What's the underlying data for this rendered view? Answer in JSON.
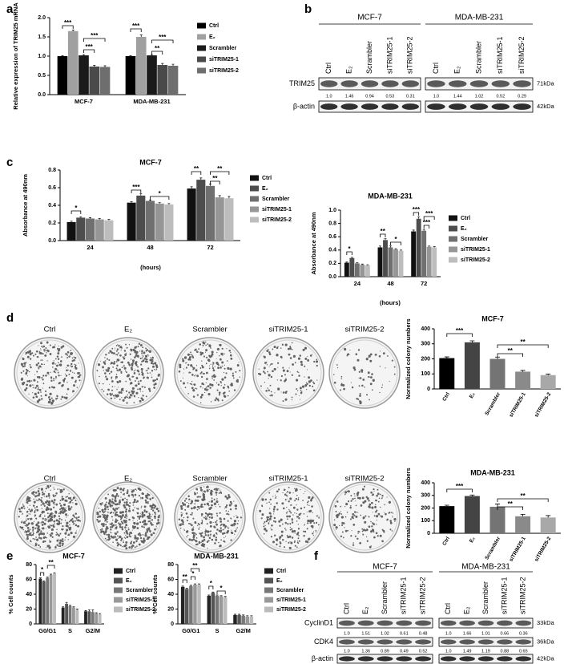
{
  "panel_labels": [
    "a",
    "b",
    "c",
    "d",
    "e",
    "f"
  ],
  "chart_data": [
    {
      "type": "bar",
      "y_label": "Relative expression of TRIM25 mRNA",
      "categories": [
        "MCF-7",
        "MDA-MB-231"
      ],
      "ylim": [
        0,
        2
      ],
      "yticks": [
        {
          "value": 0,
          "label": "0.0"
        },
        0.5,
        {
          "value": 1,
          "label": "1.0"
        },
        1.5,
        {
          "value": 2,
          "label": "2.0"
        }
      ],
      "series": [
        {
          "name": "Ctrl",
          "color": "#000000",
          "values": [
            1.0,
            1.0
          ],
          "errors": [
            0.01,
            0.01
          ]
        },
        {
          "name": "E₂",
          "color": "#a0a0a0",
          "values": [
            1.65,
            1.5
          ],
          "errors": [
            0.03,
            0.05
          ]
        },
        {
          "name": "Scrambler",
          "color": "#1a1a1a",
          "values": [
            1.02,
            1.02
          ],
          "errors": [
            0.02,
            0.02
          ]
        },
        {
          "name": "siTRIM25-1",
          "color": "#4a4a4a",
          "values": [
            0.73,
            0.77
          ],
          "errors": [
            0.03,
            0.04
          ]
        },
        {
          "name": "siTRIM25-2",
          "color": "#6e6e6e",
          "values": [
            0.72,
            0.75
          ],
          "errors": [
            0.03,
            0.04
          ]
        }
      ],
      "annotations": [
        "***",
        "***",
        "***",
        "***",
        "**",
        "***"
      ]
    },
    {
      "type": "bar",
      "title": "MCF-7",
      "y_label": "Absorbance at 490nm",
      "x_label": "(hours)",
      "categories": [
        "24",
        "48",
        "72"
      ],
      "ylim": [
        0,
        0.8
      ],
      "yticks": [
        {
          "value": 0,
          "label": "0.0"
        },
        0.2,
        0.4,
        0.6,
        0.8
      ],
      "series": [
        {
          "name": "Ctrl",
          "color": "#111111",
          "values": [
            0.21,
            0.43,
            0.59
          ],
          "errors": [
            0.01,
            0.01,
            0.02
          ]
        },
        {
          "name": "E₂",
          "color": "#4d4d4d",
          "values": [
            0.26,
            0.51,
            0.69
          ],
          "errors": [
            0.01,
            0.02,
            0.02
          ]
        },
        {
          "name": "Scrambler",
          "color": "#707070",
          "values": [
            0.25,
            0.45,
            0.62
          ],
          "errors": [
            0.01,
            0.01,
            0.02
          ]
        },
        {
          "name": "siTRIM25-1",
          "color": "#969696",
          "values": [
            0.24,
            0.42,
            0.49
          ],
          "errors": [
            0.01,
            0.01,
            0.02
          ]
        },
        {
          "name": "siTRIM25-2",
          "color": "#bdbdbd",
          "values": [
            0.23,
            0.41,
            0.48
          ],
          "errors": [
            0.01,
            0.01,
            0.02
          ]
        }
      ],
      "annotations": [
        "*",
        "***",
        "*",
        "**",
        "**",
        "**"
      ]
    },
    {
      "type": "bar",
      "title": "MDA-MB-231",
      "y_label": "Absorbance at 490nm",
      "x_label": "(hours)",
      "categories": [
        "24",
        "48",
        "72"
      ],
      "ylim": [
        0,
        1
      ],
      "yticks": [
        {
          "value": 0,
          "label": "0.0"
        },
        0.2,
        0.4,
        0.6,
        0.8,
        {
          "value": 1,
          "label": "1.0"
        }
      ],
      "series": [
        {
          "name": "Ctrl",
          "color": "#111111",
          "values": [
            0.21,
            0.44,
            0.68
          ],
          "errors": [
            0.01,
            0.02,
            0.02
          ]
        },
        {
          "name": "E₂",
          "color": "#4d4d4d",
          "values": [
            0.28,
            0.55,
            0.87
          ],
          "errors": [
            0.01,
            0.02,
            0.03
          ]
        },
        {
          "name": "Scrambler",
          "color": "#707070",
          "values": [
            0.2,
            0.44,
            0.69
          ],
          "errors": [
            0.01,
            0.02,
            0.02
          ]
        },
        {
          "name": "siTRIM25-1",
          "color": "#969696",
          "values": [
            0.18,
            0.41,
            0.45
          ],
          "errors": [
            0.01,
            0.01,
            0.01
          ]
        },
        {
          "name": "siTRIM25-2",
          "color": "#bdbdbd",
          "values": [
            0.17,
            0.39,
            0.44
          ],
          "errors": [
            0.01,
            0.01,
            0.01
          ]
        }
      ],
      "annotations": [
        "*",
        "**",
        "*",
        "***",
        "***",
        "***"
      ]
    },
    {
      "type": "bar",
      "title": "MCF-7",
      "y_label": "Normalized colony numbers",
      "categories": [
        "Ctrl",
        "E₂",
        "Scrambler",
        "siTRIM25-1",
        "siTRIM25-2"
      ],
      "values": [
        205,
        310,
        200,
        115,
        92
      ],
      "errors": [
        8,
        10,
        12,
        8,
        7
      ],
      "colors": [
        "#000000",
        "#444444",
        "#747474",
        "#8a8a8a",
        "#a8a8a8"
      ],
      "ylim": [
        0,
        400
      ],
      "yticks": [
        0,
        100,
        200,
        300,
        400
      ],
      "annotations": [
        "***",
        "**",
        "**"
      ]
    },
    {
      "type": "bar",
      "title": "MDA-MB-231",
      "y_label": "Normalized colony numbers",
      "categories": [
        "Ctrl",
        "E₂",
        "Scrambler",
        "siTRIM25-1",
        "siTRIM25-2"
      ],
      "values": [
        215,
        295,
        210,
        135,
        125
      ],
      "errors": [
        7,
        8,
        22,
        15,
        15
      ],
      "colors": [
        "#000000",
        "#444444",
        "#747474",
        "#8a8a8a",
        "#a8a8a8"
      ],
      "ylim": [
        0,
        400
      ],
      "yticks": [
        0,
        100,
        200,
        300,
        400
      ],
      "annotations": [
        "***",
        "**",
        "**"
      ]
    },
    {
      "type": "bar",
      "title": "MCF-7",
      "y_label": "% Cell counts",
      "categories": [
        "G0/G1",
        "S",
        "G2/M"
      ],
      "ylim": [
        0,
        80
      ],
      "yticks": [
        0,
        20,
        40,
        60,
        80
      ],
      "series": [
        {
          "name": "Ctrl",
          "color": "#222222",
          "values": [
            61,
            22,
            17
          ],
          "errors": [
            1,
            1,
            1
          ]
        },
        {
          "name": "E₂",
          "color": "#555555",
          "values": [
            57,
            27,
            17
          ],
          "errors": [
            1,
            2,
            2
          ]
        },
        {
          "name": "Scrambler",
          "color": "#777777",
          "values": [
            62,
            24,
            16
          ],
          "errors": [
            1,
            1,
            3
          ]
        },
        {
          "name": "siTRIM25-1",
          "color": "#999999",
          "values": [
            66,
            22,
            14
          ],
          "errors": [
            1,
            1,
            1
          ]
        },
        {
          "name": "siTRIM25-2",
          "color": "#bbbbbb",
          "values": [
            68,
            19,
            13
          ],
          "errors": [
            1,
            1,
            1
          ]
        }
      ],
      "annotations": [
        "*",
        "**"
      ]
    },
    {
      "type": "bar",
      "title": "MDA-MB-231",
      "y_label": "% Cell counts",
      "categories": [
        "G0/G1",
        "S",
        "G2/M"
      ],
      "ylim": [
        0,
        80
      ],
      "yticks": [
        0,
        20,
        40,
        60,
        80
      ],
      "series": [
        {
          "name": "Ctrl",
          "color": "#222222",
          "values": [
            50,
            38,
            12
          ],
          "errors": [
            1,
            1,
            1
          ]
        },
        {
          "name": "E₂",
          "color": "#555555",
          "values": [
            47,
            42,
            12
          ],
          "errors": [
            1,
            1,
            1
          ]
        },
        {
          "name": "Scrambler",
          "color": "#777777",
          "values": [
            51,
            38,
            11
          ],
          "errors": [
            1,
            1,
            1
          ]
        },
        {
          "name": "siTRIM25-1",
          "color": "#999999",
          "values": [
            53,
            37,
            10
          ],
          "errors": [
            1,
            1,
            1
          ]
        },
        {
          "name": "siTRIM25-2",
          "color": "#bbbbbb",
          "values": [
            53,
            36,
            10
          ],
          "errors": [
            1,
            1,
            1
          ]
        }
      ],
      "annotations": [
        "**",
        "**",
        "*",
        "*",
        "*"
      ]
    }
  ],
  "colony_labels": [
    [
      "Ctrl",
      "E₂",
      "Scrambler",
      "siTRIM25-1",
      "siTRIM25-2"
    ],
    [
      "Ctrl",
      "E₂",
      "Scrambler",
      "siTRIM25-1",
      "siTRIM25-2"
    ]
  ],
  "blots": [
    {
      "groups": [
        "MCF-7",
        "MDA-MB-231"
      ],
      "lanes": [
        "Ctrl",
        "E₂",
        "Scrambler",
        "siTRIM25-1",
        "siTRIM25-2"
      ],
      "rows": [
        {
          "name": "TRIM25",
          "kda": "71kDa",
          "quantification": [
            [
              "1.0",
              "1.46",
              "0.94",
              "0.53",
              "0.31"
            ],
            [
              "1.0",
              "1.44",
              "1.02",
              "0.52",
              "0.29"
            ]
          ]
        },
        {
          "name": "β-actin",
          "kda": "42kDa"
        }
      ]
    },
    {
      "groups": [
        "MCF-7",
        "MDA-MB-231"
      ],
      "lanes": [
        "Ctrl",
        "E₂",
        "Scrambler",
        "siTRIM25-1",
        "siTRIM25-2"
      ],
      "rows": [
        {
          "name": "CyclinD1",
          "kda": "33kDa",
          "quantification": [
            [
              "1.0",
              "1.51",
              "1.02",
              "0.61",
              "0.48"
            ],
            [
              "1.0",
              "1.66",
              "1.01",
              "0.66",
              "0.36"
            ]
          ]
        },
        {
          "name": "CDK4",
          "kda": "36kDa",
          "quantification": [
            [
              "1.0",
              "1.36",
              "0.89",
              "0.49",
              "0.52"
            ],
            [
              "1.0",
              "1.49",
              "1.19",
              "0.88",
              "0.65"
            ]
          ]
        },
        {
          "name": "β-actin",
          "kda": "42kDa"
        }
      ]
    }
  ]
}
